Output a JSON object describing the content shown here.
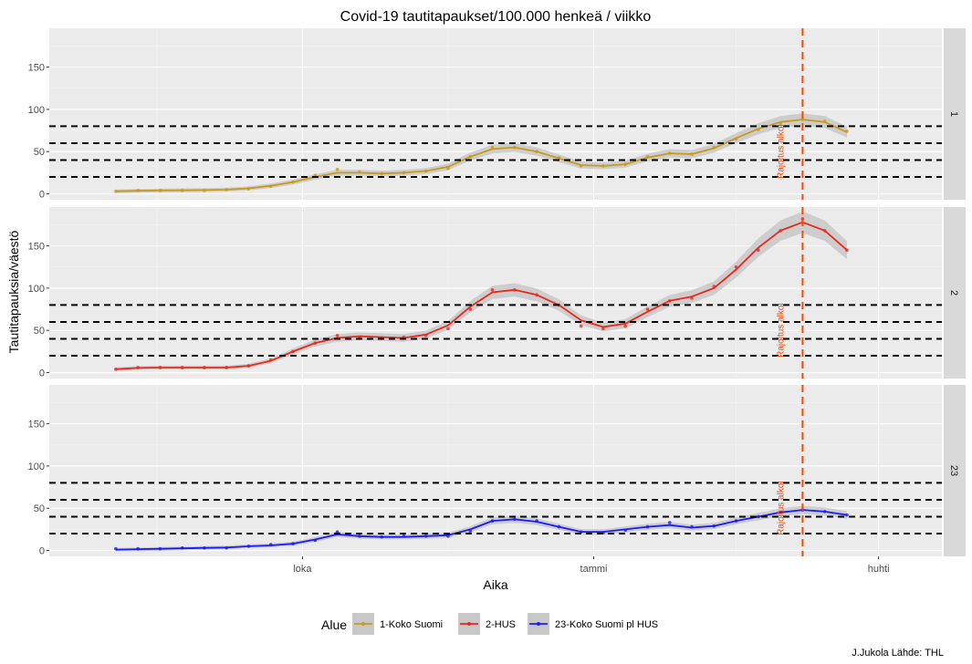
{
  "chart_data": {
    "type": "line",
    "title": "Covid-19 tautitapaukset/100.000 henkeä / viikko",
    "xlabel": "Aika",
    "ylabel": "Tautitapauksia/väestö",
    "caption": "J.Jukola  Lähde: THL",
    "x_ticks": [
      "loka",
      "tammi",
      "huhti"
    ],
    "y_ticks": [
      0,
      50,
      100,
      150
    ],
    "ylim": [
      -7,
      196
    ],
    "x": [
      "2020-08-03",
      "2020-08-10",
      "2020-08-17",
      "2020-08-24",
      "2020-08-31",
      "2020-09-07",
      "2020-09-14",
      "2020-09-21",
      "2020-09-28",
      "2020-10-05",
      "2020-10-12",
      "2020-10-19",
      "2020-10-26",
      "2020-11-02",
      "2020-11-09",
      "2020-11-16",
      "2020-11-23",
      "2020-11-30",
      "2020-12-07",
      "2020-12-14",
      "2020-12-21",
      "2020-12-28",
      "2021-01-04",
      "2021-01-11",
      "2021-01-18",
      "2021-01-25",
      "2021-02-01",
      "2021-02-08",
      "2021-02-15",
      "2021-02-22",
      "2021-03-01",
      "2021-03-08",
      "2021-03-15",
      "2021-03-22"
    ],
    "hline_values": [
      20,
      40,
      60,
      80
    ],
    "vline": {
      "date": "2021-03-08",
      "label": "Rajoitus alkoi",
      "color": "#ff4500"
    },
    "panels": [
      {
        "strip": "1",
        "name": "1-Koko Suomi",
        "color": "#c99a18",
        "values": [
          3,
          4,
          4,
          4,
          4,
          5,
          6,
          9,
          14,
          22,
          29,
          26,
          24,
          25,
          27,
          30,
          44,
          55,
          55,
          50,
          43,
          33,
          33,
          35,
          44,
          48,
          47,
          55,
          65,
          76,
          83,
          88,
          86,
          74
        ],
        "smooth": [
          3,
          3.6,
          4,
          4.2,
          4.4,
          5,
          6.5,
          9.5,
          14,
          20,
          25,
          25,
          24,
          25,
          27,
          32,
          44,
          53,
          55,
          50,
          42,
          34,
          33,
          35,
          43,
          48,
          47,
          54,
          66,
          77,
          85,
          88,
          85,
          73
        ]
      },
      {
        "strip": "2",
        "name": "2-HUS",
        "color": "#e8291c",
        "values": [
          4,
          6,
          6,
          6,
          6,
          6,
          8,
          15,
          25,
          35,
          44,
          42,
          41,
          42,
          44,
          52,
          75,
          98,
          98,
          92,
          80,
          55,
          52,
          55,
          75,
          85,
          88,
          102,
          125,
          145,
          168,
          182,
          168,
          145
        ],
        "smooth": [
          4,
          5.5,
          6,
          6,
          6,
          6,
          8,
          14,
          25,
          35,
          41,
          43,
          42,
          41,
          45,
          56,
          78,
          95,
          98,
          92,
          80,
          62,
          54,
          58,
          72,
          85,
          90,
          100,
          122,
          148,
          168,
          178,
          168,
          145
        ]
      },
      {
        "strip": "23",
        "name": "23-Koko Suomi pl HUS",
        "color": "#1a1aff",
        "values": [
          2,
          2,
          2,
          3,
          3,
          3,
          5,
          7,
          8,
          12,
          22,
          17,
          16,
          17,
          17,
          17,
          23,
          35,
          37,
          35,
          28,
          22,
          21,
          24,
          28,
          33,
          28,
          29,
          35,
          40,
          45,
          48,
          46,
          42
        ],
        "smooth": [
          1,
          1.5,
          2,
          2.5,
          3,
          3.5,
          5,
          6,
          8,
          13,
          19,
          17,
          16,
          16,
          17,
          18,
          25,
          35,
          37,
          34,
          28,
          22,
          22,
          25,
          28,
          30,
          27,
          29,
          35,
          40,
          45,
          48,
          46,
          42
        ]
      }
    ],
    "legend": {
      "title": "Alue",
      "position": "bottom",
      "entries": [
        "1-Koko Suomi",
        "2-HUS",
        "23-Koko Suomi pl HUS"
      ]
    }
  }
}
